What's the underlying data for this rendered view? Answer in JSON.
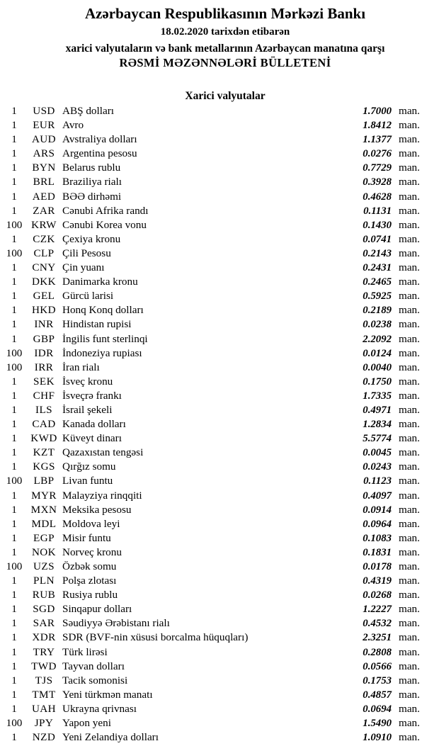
{
  "header": {
    "bank_title": "Azərbaycan Respublikasının Mərkəzi Bankı",
    "date_line": "18.02.2020 tarixdən etibarən",
    "subtitle": "xarici valyutaların və bank metallarının Azərbaycan manatına qarşı",
    "bulletin_title": "RƏSMİ MƏZƏNNƏLƏRİ BÜLLETENİ"
  },
  "section": {
    "title": "Xarici valyutalar"
  },
  "table": {
    "unit_label": "man.",
    "text_color": "#000000",
    "background_color": "#ffffff"
  },
  "rates": [
    {
      "qty": "1",
      "code": "USD",
      "name": "ABŞ dolları",
      "rate": "1.7000"
    },
    {
      "qty": "1",
      "code": "EUR",
      "name": "Avro",
      "rate": "1.8412"
    },
    {
      "qty": "1",
      "code": "AUD",
      "name": "Avstraliya dolları",
      "rate": "1.1377"
    },
    {
      "qty": "1",
      "code": "ARS",
      "name": "Argentina pesosu",
      "rate": "0.0276"
    },
    {
      "qty": "1",
      "code": "BYN",
      "name": "Belarus rublu",
      "rate": "0.7729"
    },
    {
      "qty": "1",
      "code": "BRL",
      "name": "Braziliya rialı",
      "rate": "0.3928"
    },
    {
      "qty": "1",
      "code": "AED",
      "name": "BƏƏ dirhəmi",
      "rate": "0.4628"
    },
    {
      "qty": "1",
      "code": "ZAR",
      "name": "Cənubi Afrika randı",
      "rate": "0.1131"
    },
    {
      "qty": "100",
      "code": "KRW",
      "name": "Cənubi Korea vonu",
      "rate": "0.1430"
    },
    {
      "qty": "1",
      "code": "CZK",
      "name": "Çexiya kronu",
      "rate": "0.0741"
    },
    {
      "qty": "100",
      "code": "CLP",
      "name": "Çili Pesosu",
      "rate": "0.2143"
    },
    {
      "qty": "1",
      "code": "CNY",
      "name": "Çin yuanı",
      "rate": "0.2431"
    },
    {
      "qty": "1",
      "code": "DKK",
      "name": "Danimarka kronu",
      "rate": "0.2465"
    },
    {
      "qty": "1",
      "code": "GEL",
      "name": "Gürcü larisi",
      "rate": "0.5925"
    },
    {
      "qty": "1",
      "code": "HKD",
      "name": "Honq Konq dolları",
      "rate": "0.2189"
    },
    {
      "qty": "1",
      "code": "INR",
      "name": "Hindistan rupisi",
      "rate": "0.0238"
    },
    {
      "qty": "1",
      "code": "GBP",
      "name": "İngilis funt sterlinqi",
      "rate": "2.2092"
    },
    {
      "qty": "100",
      "code": "IDR",
      "name": "İndoneziya rupiası",
      "rate": "0.0124"
    },
    {
      "qty": "100",
      "code": "IRR",
      "name": "İran rialı",
      "rate": "0.0040"
    },
    {
      "qty": "1",
      "code": "SEK",
      "name": "İsveç kronu",
      "rate": "0.1750"
    },
    {
      "qty": "1",
      "code": "CHF",
      "name": "İsveçrə frankı",
      "rate": "1.7335"
    },
    {
      "qty": "1",
      "code": "ILS",
      "name": "İsrail şekeli",
      "rate": "0.4971"
    },
    {
      "qty": "1",
      "code": "CAD",
      "name": "Kanada dolları",
      "rate": "1.2834"
    },
    {
      "qty": "1",
      "code": "KWD",
      "name": "Küveyt dinarı",
      "rate": "5.5774"
    },
    {
      "qty": "1",
      "code": "KZT",
      "name": "Qazaxıstan tengəsi",
      "rate": "0.0045"
    },
    {
      "qty": "1",
      "code": "KGS",
      "name": "Qırğız somu",
      "rate": "0.0243"
    },
    {
      "qty": "100",
      "code": "LBP",
      "name": "Livan funtu",
      "rate": "0.1123"
    },
    {
      "qty": "1",
      "code": "MYR",
      "name": "Malayziya rinqqiti",
      "rate": "0.4097"
    },
    {
      "qty": "1",
      "code": "MXN",
      "name": "Meksika pesosu",
      "rate": "0.0914"
    },
    {
      "qty": "1",
      "code": "MDL",
      "name": "Moldova leyi",
      "rate": "0.0964"
    },
    {
      "qty": "1",
      "code": "EGP",
      "name": "Misir funtu",
      "rate": "0.1083"
    },
    {
      "qty": "1",
      "code": "NOK",
      "name": "Norveç kronu",
      "rate": "0.1831"
    },
    {
      "qty": "100",
      "code": "UZS",
      "name": "Özbək somu",
      "rate": "0.0178"
    },
    {
      "qty": "1",
      "code": "PLN",
      "name": "Polşa zlotası",
      "rate": "0.4319"
    },
    {
      "qty": "1",
      "code": "RUB",
      "name": "Rusiya rublu",
      "rate": "0.0268"
    },
    {
      "qty": "1",
      "code": "SGD",
      "name": "Sinqapur dolları",
      "rate": "1.2227"
    },
    {
      "qty": "1",
      "code": "SAR",
      "name": "Səudiyyə Ərəbistanı rialı",
      "rate": "0.4532"
    },
    {
      "qty": "1",
      "code": "XDR",
      "name": "SDR (BVF-nin xüsusi borcalma hüquqları)",
      "rate": "2.3251"
    },
    {
      "qty": "1",
      "code": "TRY",
      "name": "Türk lirəsi",
      "rate": "0.2808"
    },
    {
      "qty": "1",
      "code": "TWD",
      "name": "Tayvan dolları",
      "rate": "0.0566"
    },
    {
      "qty": "1",
      "code": "TJS",
      "name": "Tacik somonisi",
      "rate": "0.1753"
    },
    {
      "qty": "1",
      "code": "TMT",
      "name": "Yeni türkmən manatı",
      "rate": "0.4857"
    },
    {
      "qty": "1",
      "code": "UAH",
      "name": "Ukrayna qrivnası",
      "rate": "0.0694"
    },
    {
      "qty": "100",
      "code": "JPY",
      "name": "Yapon yeni",
      "rate": "1.5490"
    },
    {
      "qty": "1",
      "code": "NZD",
      "name": "Yeni Zelandiya dolları",
      "rate": "1.0910"
    }
  ]
}
